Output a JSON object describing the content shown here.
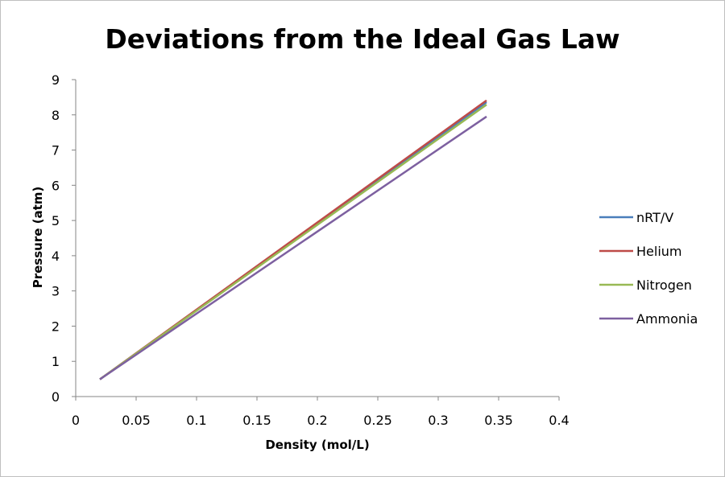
{
  "chart_data": {
    "type": "line",
    "title": "Deviations from the Ideal Gas Law",
    "xlabel": "Density (mol/L)",
    "ylabel": "Pressure (atm)",
    "xlim": [
      0,
      0.4
    ],
    "ylim": [
      0,
      9
    ],
    "x_ticks": [
      "0",
      "0.05",
      "0.1",
      "0.15",
      "0.2",
      "0.25",
      "0.3",
      "0.35",
      "0.4"
    ],
    "y_ticks": [
      "0",
      "1",
      "2",
      "3",
      "4",
      "5",
      "6",
      "7",
      "8",
      "9"
    ],
    "grid": false,
    "legend_position": "right",
    "series": [
      {
        "name": "nRT/V",
        "color": "#4a7ebb",
        "x": [
          0.02,
          0.34
        ],
        "y": [
          0.49,
          8.36
        ]
      },
      {
        "name": "Helium",
        "color": "#be4b48",
        "x": [
          0.02,
          0.34
        ],
        "y": [
          0.49,
          8.41
        ]
      },
      {
        "name": "Nitrogen",
        "color": "#98b954",
        "x": [
          0.02,
          0.34
        ],
        "y": [
          0.49,
          8.29
        ]
      },
      {
        "name": "Ammonia",
        "color": "#7d60a0",
        "x": [
          0.02,
          0.34
        ],
        "y": [
          0.49,
          7.95
        ]
      }
    ]
  }
}
